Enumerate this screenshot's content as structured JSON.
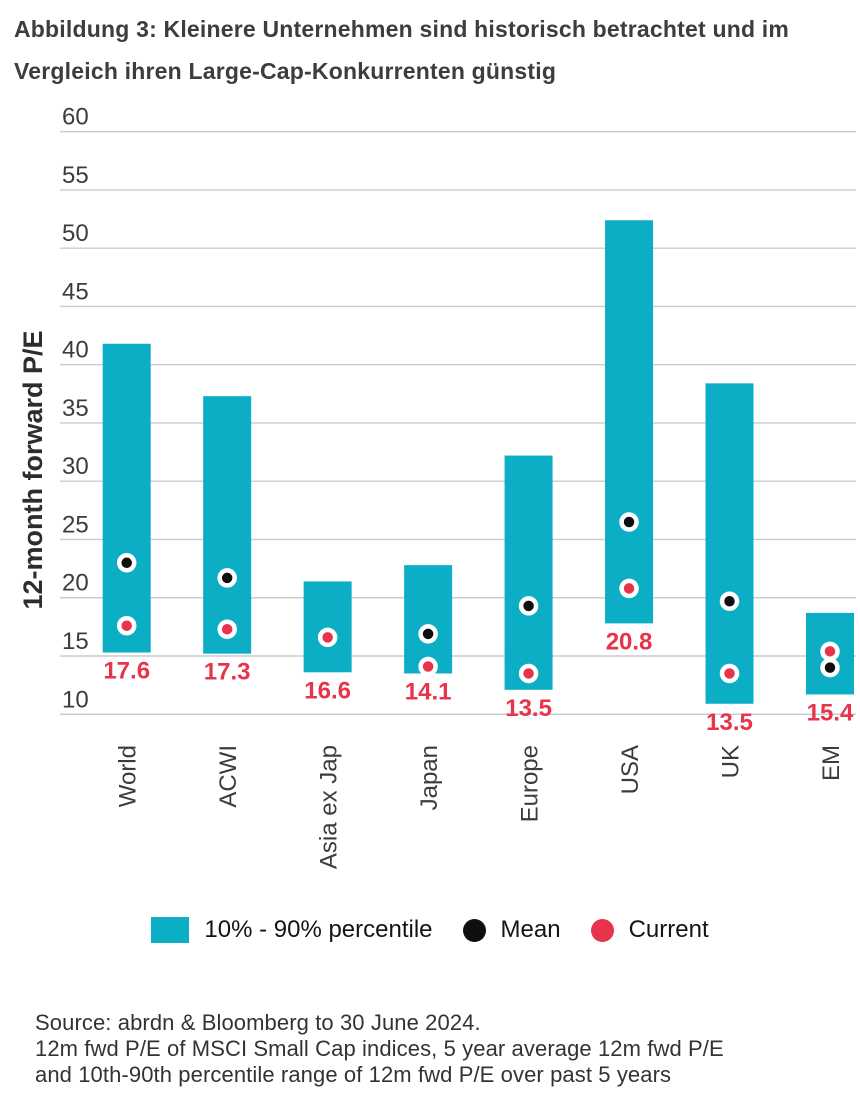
{
  "title": {
    "line1": "Abbildung 3: Kleinere Unternehmen sind historisch betrachtet und im",
    "line2": "Vergleich ihren Large-Cap-Konkurrenten günstig"
  },
  "chart_data": {
    "type": "bar",
    "subtype": "floating-range-with-markers",
    "ylabel": "12-month forward P/E",
    "ylim": [
      10,
      60
    ],
    "yticks": [
      60,
      55,
      50,
      45,
      40,
      35,
      30,
      25,
      20,
      15,
      10
    ],
    "grid": "horizontal",
    "categories": [
      "World",
      "ACWI",
      "Asia ex Jap",
      "Japan",
      "Europe",
      "USA",
      "UK",
      "EM"
    ],
    "series": [
      {
        "name": "10% - 90% percentile",
        "type": "range",
        "low": [
          15.3,
          15.2,
          13.6,
          13.5,
          12.1,
          17.8,
          10.9,
          11.7
        ],
        "high": [
          41.8,
          37.3,
          21.4,
          22.8,
          32.2,
          52.4,
          38.4,
          18.7
        ]
      },
      {
        "name": "Mean",
        "type": "point",
        "values": [
          23.0,
          21.7,
          null,
          16.9,
          19.3,
          26.5,
          19.7,
          14.0
        ]
      },
      {
        "name": "Current",
        "type": "point",
        "values": [
          17.6,
          17.3,
          16.6,
          14.1,
          13.5,
          20.8,
          13.5,
          15.4
        ]
      }
    ],
    "value_labels": [
      "17.6",
      "17.3",
      "16.6",
      "14.1",
      "13.5",
      "20.8",
      "13.5",
      "15.4"
    ],
    "legend": [
      {
        "label": "10% - 90% percentile",
        "marker": "square"
      },
      {
        "label": "Mean",
        "marker": "circle"
      },
      {
        "label": "Current",
        "marker": "circle"
      }
    ],
    "legend_position": "bottom"
  },
  "source": {
    "line1": "Source: abrdn & Bloomberg to 30 June 2024.",
    "line2": "12m fwd P/E of MSCI Small Cap indices, 5 year average 12m fwd P/E",
    "line3": "and 10th-90th percentile range of 12m fwd P/E over past 5 years"
  },
  "colors": {
    "teal": "#0CAEC6",
    "red": "#E8334C",
    "mean_black": "#0F0F0F",
    "grid": "#CCCCCC",
    "text_dark": "#3C3C3C",
    "axis_title": "#2D2D2D",
    "legend_text": "#141414"
  }
}
